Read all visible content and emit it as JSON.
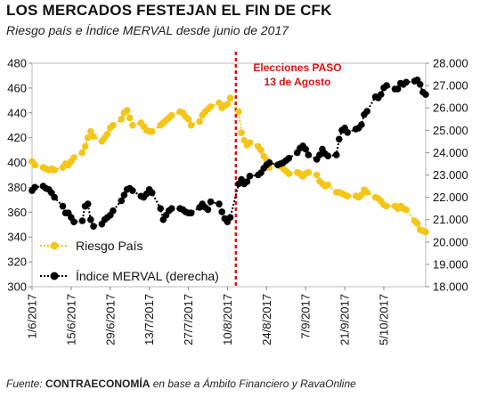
{
  "title": "LOS MERCADOS FESTEJAN EL FIN DE CFK",
  "subtitle": "Riesgo país e Índice MERVAL desde junio de 2017",
  "source": {
    "prefix": "Fuente: ",
    "brand": "CONTRAECONOMÍA",
    "suffix": " en base a Ámbito Financiero y RavaOnline"
  },
  "chart_data": {
    "type": "line",
    "xlabel": "",
    "ylabel_left": "",
    "ylabel_right": "",
    "x_range": [
      "2017-06-01",
      "2017-10-20"
    ],
    "x_ticks": [
      "1/6/2017",
      "15/6/2017",
      "29/6/2017",
      "13/7/2017",
      "27/7/2017",
      "10/8/2017",
      "24/8/2017",
      "7/9/2017",
      "21/9/2017",
      "5/10/2017"
    ],
    "y_left": {
      "min": 300,
      "max": 480,
      "ticks": [
        "300",
        "320",
        "340",
        "360",
        "380",
        "400",
        "420",
        "440",
        "460",
        "480"
      ]
    },
    "y_right": {
      "min": 18000,
      "max": 28000,
      "ticks": [
        "18.000",
        "19.000",
        "20.000",
        "21.000",
        "22.000",
        "23.000",
        "24.000",
        "25.000",
        "26.000",
        "27.000",
        "28.000"
      ]
    },
    "grid": false,
    "legend_position": "bottom-left",
    "annotation": {
      "lines": [
        "Elecciones PASO",
        "13 de Agosto"
      ],
      "date": "2017-08-13",
      "color": "#dd1111"
    },
    "series": [
      {
        "name": "Riesgo País",
        "axis": "left",
        "color": "#f5c518",
        "style": "dotted",
        "points": [
          [
            "2017-06-01",
            401
          ],
          [
            "2017-06-02",
            398
          ],
          [
            "2017-06-05",
            396
          ],
          [
            "2017-06-06",
            395
          ],
          [
            "2017-06-07",
            394
          ],
          [
            "2017-06-08",
            395
          ],
          [
            "2017-06-09",
            394
          ],
          [
            "2017-06-12",
            396
          ],
          [
            "2017-06-13",
            399
          ],
          [
            "2017-06-14",
            398
          ],
          [
            "2017-06-15",
            401
          ],
          [
            "2017-06-16",
            404
          ],
          [
            "2017-06-19",
            408
          ],
          [
            "2017-06-20",
            413
          ],
          [
            "2017-06-21",
            420
          ],
          [
            "2017-06-22",
            425
          ],
          [
            "2017-06-23",
            421
          ],
          [
            "2017-06-26",
            417
          ],
          [
            "2017-06-27",
            420
          ],
          [
            "2017-06-28",
            423
          ],
          [
            "2017-06-29",
            428
          ],
          [
            "2017-06-30",
            430
          ],
          [
            "2017-07-03",
            435
          ],
          [
            "2017-07-04",
            440
          ],
          [
            "2017-07-05",
            442
          ],
          [
            "2017-07-06",
            436
          ],
          [
            "2017-07-07",
            430
          ],
          [
            "2017-07-10",
            432
          ],
          [
            "2017-07-11",
            429
          ],
          [
            "2017-07-12",
            426
          ],
          [
            "2017-07-13",
            425
          ],
          [
            "2017-07-14",
            425
          ],
          [
            "2017-07-17",
            430
          ],
          [
            "2017-07-18",
            432
          ],
          [
            "2017-07-19",
            434
          ],
          [
            "2017-07-20",
            436
          ],
          [
            "2017-07-21",
            438
          ],
          [
            "2017-07-24",
            441
          ],
          [
            "2017-07-25",
            440
          ],
          [
            "2017-07-26",
            437
          ],
          [
            "2017-07-27",
            435
          ],
          [
            "2017-07-28",
            430
          ],
          [
            "2017-07-31",
            433
          ],
          [
            "2017-08-01",
            438
          ],
          [
            "2017-08-02",
            441
          ],
          [
            "2017-08-03",
            443
          ],
          [
            "2017-08-04",
            445
          ],
          [
            "2017-08-07",
            448
          ],
          [
            "2017-08-08",
            444
          ],
          [
            "2017-08-09",
            446
          ],
          [
            "2017-08-10",
            447
          ],
          [
            "2017-08-11",
            452
          ],
          [
            "2017-08-14",
            441
          ],
          [
            "2017-08-15",
            424
          ],
          [
            "2017-08-16",
            418
          ],
          [
            "2017-08-17",
            414
          ],
          [
            "2017-08-18",
            416
          ],
          [
            "2017-08-21",
            413
          ],
          [
            "2017-08-22",
            410
          ],
          [
            "2017-08-23",
            405
          ],
          [
            "2017-08-24",
            402
          ],
          [
            "2017-08-25",
            396
          ],
          [
            "2017-08-28",
            398
          ],
          [
            "2017-08-29",
            397
          ],
          [
            "2017-08-30",
            395
          ],
          [
            "2017-08-31",
            393
          ],
          [
            "2017-09-01",
            391
          ],
          [
            "2017-09-04",
            392
          ],
          [
            "2017-09-05",
            391
          ],
          [
            "2017-09-06",
            389
          ],
          [
            "2017-09-07",
            391
          ],
          [
            "2017-09-08",
            392
          ],
          [
            "2017-09-11",
            390
          ],
          [
            "2017-09-12",
            385
          ],
          [
            "2017-09-13",
            383
          ],
          [
            "2017-09-14",
            381
          ],
          [
            "2017-09-15",
            382
          ],
          [
            "2017-09-18",
            376
          ],
          [
            "2017-09-19",
            376
          ],
          [
            "2017-09-20",
            375
          ],
          [
            "2017-09-21",
            374
          ],
          [
            "2017-09-22",
            373
          ],
          [
            "2017-09-25",
            373
          ],
          [
            "2017-09-26",
            372
          ],
          [
            "2017-09-27",
            374
          ],
          [
            "2017-09-28",
            378
          ],
          [
            "2017-09-29",
            376
          ],
          [
            "2017-10-02",
            372
          ],
          [
            "2017-10-03",
            371
          ],
          [
            "2017-10-04",
            369
          ],
          [
            "2017-10-05",
            366
          ],
          [
            "2017-10-06",
            365
          ],
          [
            "2017-10-09",
            365
          ],
          [
            "2017-10-10",
            363
          ],
          [
            "2017-10-11",
            365
          ],
          [
            "2017-10-12",
            363
          ],
          [
            "2017-10-13",
            362
          ],
          [
            "2017-10-16",
            353
          ],
          [
            "2017-10-17",
            351
          ],
          [
            "2017-10-18",
            346
          ],
          [
            "2017-10-19",
            345
          ],
          [
            "2017-10-20",
            344
          ]
        ]
      },
      {
        "name": "Índice MERVAL (derecha)",
        "axis": "right",
        "color": "#000000",
        "style": "dotted",
        "points": [
          [
            "2017-06-01",
            22300
          ],
          [
            "2017-06-02",
            22450
          ],
          [
            "2017-06-05",
            22500
          ],
          [
            "2017-06-06",
            22400
          ],
          [
            "2017-06-07",
            22350
          ],
          [
            "2017-06-08",
            22200
          ],
          [
            "2017-06-09",
            22000
          ],
          [
            "2017-06-12",
            21600
          ],
          [
            "2017-06-13",
            21300
          ],
          [
            "2017-06-14",
            21300
          ],
          [
            "2017-06-15",
            21100
          ],
          [
            "2017-06-16",
            20900
          ],
          [
            "2017-06-19",
            20950
          ],
          [
            "2017-06-20",
            21600
          ],
          [
            "2017-06-21",
            21700
          ],
          [
            "2017-06-22",
            21000
          ],
          [
            "2017-06-23",
            20700
          ],
          [
            "2017-06-26",
            20800
          ],
          [
            "2017-06-27",
            21000
          ],
          [
            "2017-06-28",
            21100
          ],
          [
            "2017-06-29",
            21200
          ],
          [
            "2017-06-30",
            21400
          ],
          [
            "2017-07-03",
            21850
          ],
          [
            "2017-07-04",
            22100
          ],
          [
            "2017-07-05",
            22350
          ],
          [
            "2017-07-06",
            22400
          ],
          [
            "2017-07-07",
            22300
          ],
          [
            "2017-07-10",
            22050
          ],
          [
            "2017-07-11",
            22000
          ],
          [
            "2017-07-12",
            22150
          ],
          [
            "2017-07-13",
            22350
          ],
          [
            "2017-07-14",
            22200
          ],
          [
            "2017-07-17",
            21500
          ],
          [
            "2017-07-18",
            21000
          ],
          [
            "2017-07-19",
            21200
          ],
          [
            "2017-07-20",
            21400
          ],
          [
            "2017-07-21",
            21500
          ],
          [
            "2017-07-24",
            21500
          ],
          [
            "2017-07-25",
            21450
          ],
          [
            "2017-07-26",
            21350
          ],
          [
            "2017-07-27",
            21300
          ],
          [
            "2017-07-28",
            21300
          ],
          [
            "2017-07-31",
            21550
          ],
          [
            "2017-08-01",
            21700
          ],
          [
            "2017-08-02",
            21550
          ],
          [
            "2017-08-03",
            21450
          ],
          [
            "2017-08-04",
            21800
          ],
          [
            "2017-08-07",
            21700
          ],
          [
            "2017-08-08",
            21350
          ],
          [
            "2017-08-09",
            21050
          ],
          [
            "2017-08-10",
            20900
          ],
          [
            "2017-08-11",
            21100
          ],
          [
            "2017-08-14",
            22600
          ],
          [
            "2017-08-15",
            22800
          ],
          [
            "2017-08-16",
            22600
          ],
          [
            "2017-08-17",
            22700
          ],
          [
            "2017-08-18",
            22950
          ],
          [
            "2017-08-21",
            23000
          ],
          [
            "2017-08-22",
            23100
          ],
          [
            "2017-08-23",
            23300
          ],
          [
            "2017-08-24",
            23450
          ],
          [
            "2017-08-25",
            23550
          ],
          [
            "2017-08-28",
            23450
          ],
          [
            "2017-08-29",
            23500
          ],
          [
            "2017-08-30",
            23550
          ],
          [
            "2017-08-31",
            23650
          ],
          [
            "2017-09-01",
            23750
          ],
          [
            "2017-09-04",
            24000
          ],
          [
            "2017-09-05",
            24200
          ],
          [
            "2017-09-06",
            24300
          ],
          [
            "2017-09-07",
            24150
          ],
          [
            "2017-09-08",
            23900
          ],
          [
            "2017-09-11",
            23700
          ],
          [
            "2017-09-12",
            23900
          ],
          [
            "2017-09-13",
            24150
          ],
          [
            "2017-09-14",
            23950
          ],
          [
            "2017-09-15",
            23850
          ],
          [
            "2017-09-18",
            23900
          ],
          [
            "2017-09-19",
            24600
          ],
          [
            "2017-09-20",
            25000
          ],
          [
            "2017-09-21",
            25100
          ],
          [
            "2017-09-22",
            24900
          ],
          [
            "2017-09-25",
            25050
          ],
          [
            "2017-09-26",
            25100
          ],
          [
            "2017-09-27",
            25250
          ],
          [
            "2017-09-28",
            25700
          ],
          [
            "2017-09-29",
            25850
          ],
          [
            "2017-10-02",
            26500
          ],
          [
            "2017-10-03",
            26450
          ],
          [
            "2017-10-04",
            26600
          ],
          [
            "2017-10-05",
            26900
          ],
          [
            "2017-10-06",
            27000
          ],
          [
            "2017-10-09",
            26850
          ],
          [
            "2017-10-10",
            26850
          ],
          [
            "2017-10-11",
            27100
          ],
          [
            "2017-10-12",
            27050
          ],
          [
            "2017-10-13",
            27150
          ],
          [
            "2017-10-16",
            27200
          ],
          [
            "2017-10-17",
            27250
          ],
          [
            "2017-10-18",
            27050
          ],
          [
            "2017-10-19",
            26700
          ],
          [
            "2017-10-20",
            26600
          ]
        ]
      }
    ]
  }
}
